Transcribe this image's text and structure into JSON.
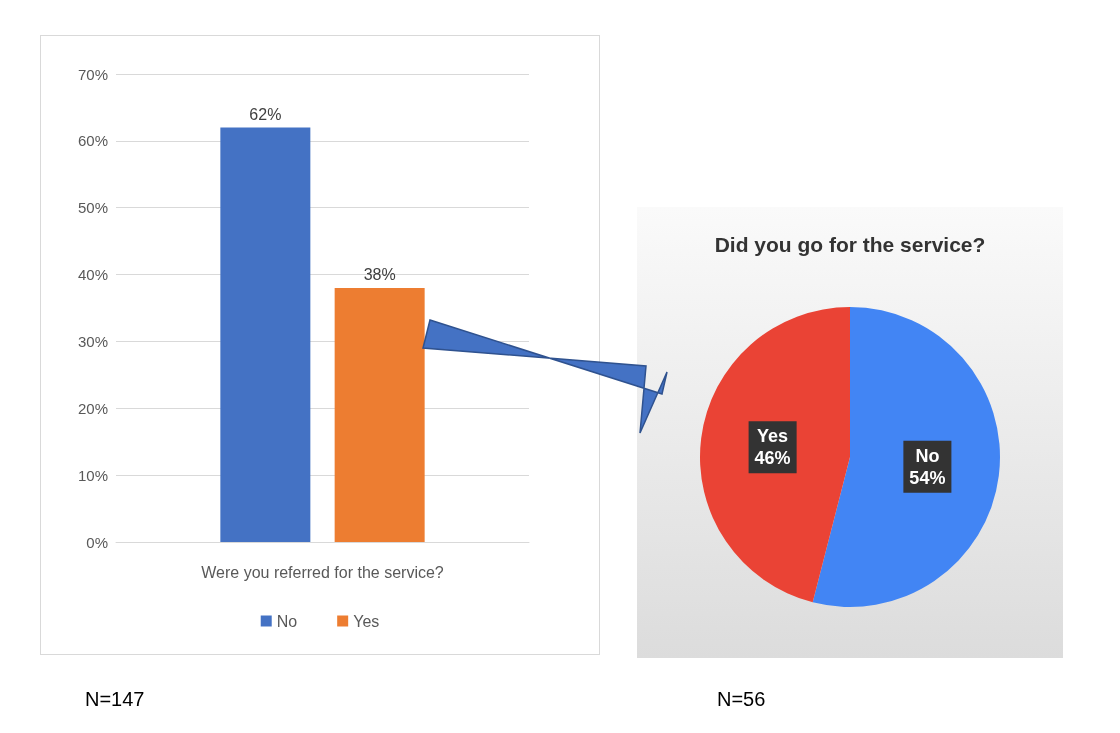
{
  "chart_data": [
    {
      "type": "bar",
      "categories": [
        "Were you referred for the service?"
      ],
      "series": [
        {
          "name": "No",
          "color": "#4472c4",
          "values": [
            62
          ],
          "value_labels": [
            "62%"
          ]
        },
        {
          "name": "Yes",
          "color": "#ed7d31",
          "values": [
            38
          ],
          "value_labels": [
            "38%"
          ]
        }
      ],
      "ylim": [
        0,
        70
      ],
      "yticks": [
        {
          "value": 0,
          "label": "0%"
        },
        {
          "value": 10,
          "label": "10%"
        },
        {
          "value": 20,
          "label": "20%"
        },
        {
          "value": 30,
          "label": "30%"
        },
        {
          "value": 40,
          "label": "40%"
        },
        {
          "value": 50,
          "label": "50%"
        },
        {
          "value": 60,
          "label": "60%"
        },
        {
          "value": 70,
          "label": "70%"
        }
      ],
      "grid": "y",
      "legend": "bottom",
      "annotations": [
        "N=147"
      ]
    },
    {
      "type": "pie",
      "title": "Did you go for the service?",
      "categories": [
        "No",
        "Yes"
      ],
      "values": [
        54,
        46
      ],
      "colors": [
        "#4285f4",
        "#ea4335"
      ],
      "value_labels": [
        "54%",
        "46%"
      ],
      "annotations": [
        "N=56"
      ]
    }
  ]
}
